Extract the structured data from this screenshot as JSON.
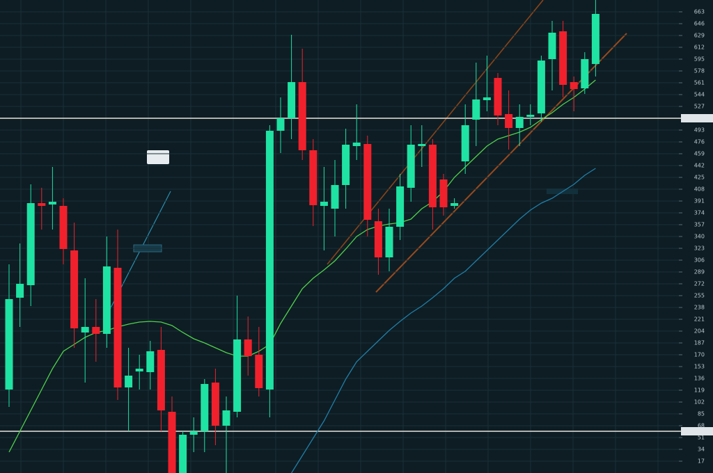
{
  "chart_data": {
    "type": "candlestick",
    "open": [
      120,
      252,
      270,
      388,
      386,
      384,
      320,
      202,
      210,
      200,
      295,
      123,
      146,
      145,
      177,
      88,
      0,
      55,
      60,
      130,
      68,
      88,
      192,
      170,
      120,
      492,
      510,
      562,
      464,
      384,
      380,
      414,
      470,
      473,
      362,
      310,
      354,
      410,
      470,
      472,
      422,
      384,
      448,
      508,
      536,
      568,
      516,
      496,
      512,
      517,
      595,
      635,
      562,
      553,
      588
    ],
    "high": [
      300,
      330,
      415,
      410,
      440,
      395,
      360,
      280,
      250,
      340,
      350,
      180,
      170,
      190,
      210,
      110,
      60,
      80,
      135,
      150,
      110,
      255,
      225,
      210,
      500,
      540,
      630,
      610,
      480,
      440,
      450,
      495,
      530,
      485,
      380,
      380,
      430,
      500,
      500,
      480,
      430,
      395,
      530,
      590,
      600,
      575,
      550,
      530,
      530,
      600,
      650,
      650,
      570,
      605,
      680
    ],
    "low": [
      95,
      210,
      240,
      350,
      350,
      300,
      180,
      130,
      160,
      180,
      105,
      60,
      120,
      120,
      60,
      0,
      0,
      30,
      30,
      40,
      0,
      80,
      140,
      110,
      80,
      460,
      480,
      450,
      355,
      320,
      340,
      380,
      450,
      340,
      285,
      290,
      335,
      390,
      440,
      350,
      370,
      380,
      430,
      470,
      520,
      500,
      465,
      470,
      500,
      505,
      550,
      540,
      520,
      545,
      570
    ],
    "close": [
      250,
      272,
      388,
      384,
      390,
      322,
      208,
      210,
      200,
      297,
      123,
      140,
      150,
      175,
      90,
      0,
      55,
      60,
      128,
      68,
      90,
      192,
      168,
      122,
      492,
      510,
      562,
      464,
      385,
      390,
      414,
      472,
      475,
      364,
      310,
      354,
      412,
      472,
      473,
      382,
      382,
      388,
      500,
      537,
      540,
      514,
      496,
      512,
      515,
      593,
      633,
      558,
      552,
      595,
      660
    ],
    "up_color": "#1fe3a2",
    "down_color": "#f0212c",
    "overlays": [
      {
        "color": "#4fd24a",
        "values": [
          30,
          60,
          90,
          120,
          150,
          175,
          185,
          195,
          202,
          205,
          210,
          214,
          217,
          218,
          217,
          212,
          202,
          193,
          187,
          180,
          173,
          168,
          168,
          175,
          185,
          215,
          240,
          265,
          280,
          292,
          305,
          322,
          340,
          350,
          355,
          358,
          360,
          365,
          380,
          390,
          405,
          425,
          440,
          455,
          470,
          480,
          485,
          490,
          497,
          508,
          518,
          530,
          540,
          552,
          565
        ]
      },
      {
        "color": "#1f7fa8",
        "values": [
          null,
          null,
          null,
          null,
          null,
          null,
          null,
          null,
          null,
          null,
          null,
          null,
          null,
          null,
          null,
          null,
          null,
          null,
          null,
          null,
          null,
          null,
          null,
          null,
          null,
          null,
          0,
          25,
          50,
          75,
          105,
          135,
          160,
          175,
          190,
          205,
          218,
          230,
          240,
          252,
          265,
          280,
          290,
          305,
          320,
          335,
          350,
          365,
          378,
          388,
          395,
          405,
          415,
          428,
          438
        ]
      }
    ],
    "hlines": [
      510,
      60
    ],
    "hline_color": "#e8e6dc",
    "ylim": [
      0,
      680
    ],
    "yticks": [
      17,
      34,
      51,
      68,
      85,
      102,
      119,
      136,
      153,
      170,
      187,
      204,
      221,
      238,
      255,
      272,
      289,
      306,
      323,
      340,
      357,
      374,
      391,
      408,
      425,
      442,
      459,
      476,
      493,
      510,
      527,
      544,
      561,
      578,
      595,
      612,
      629,
      646,
      663
    ],
    "grid": true
  }
}
